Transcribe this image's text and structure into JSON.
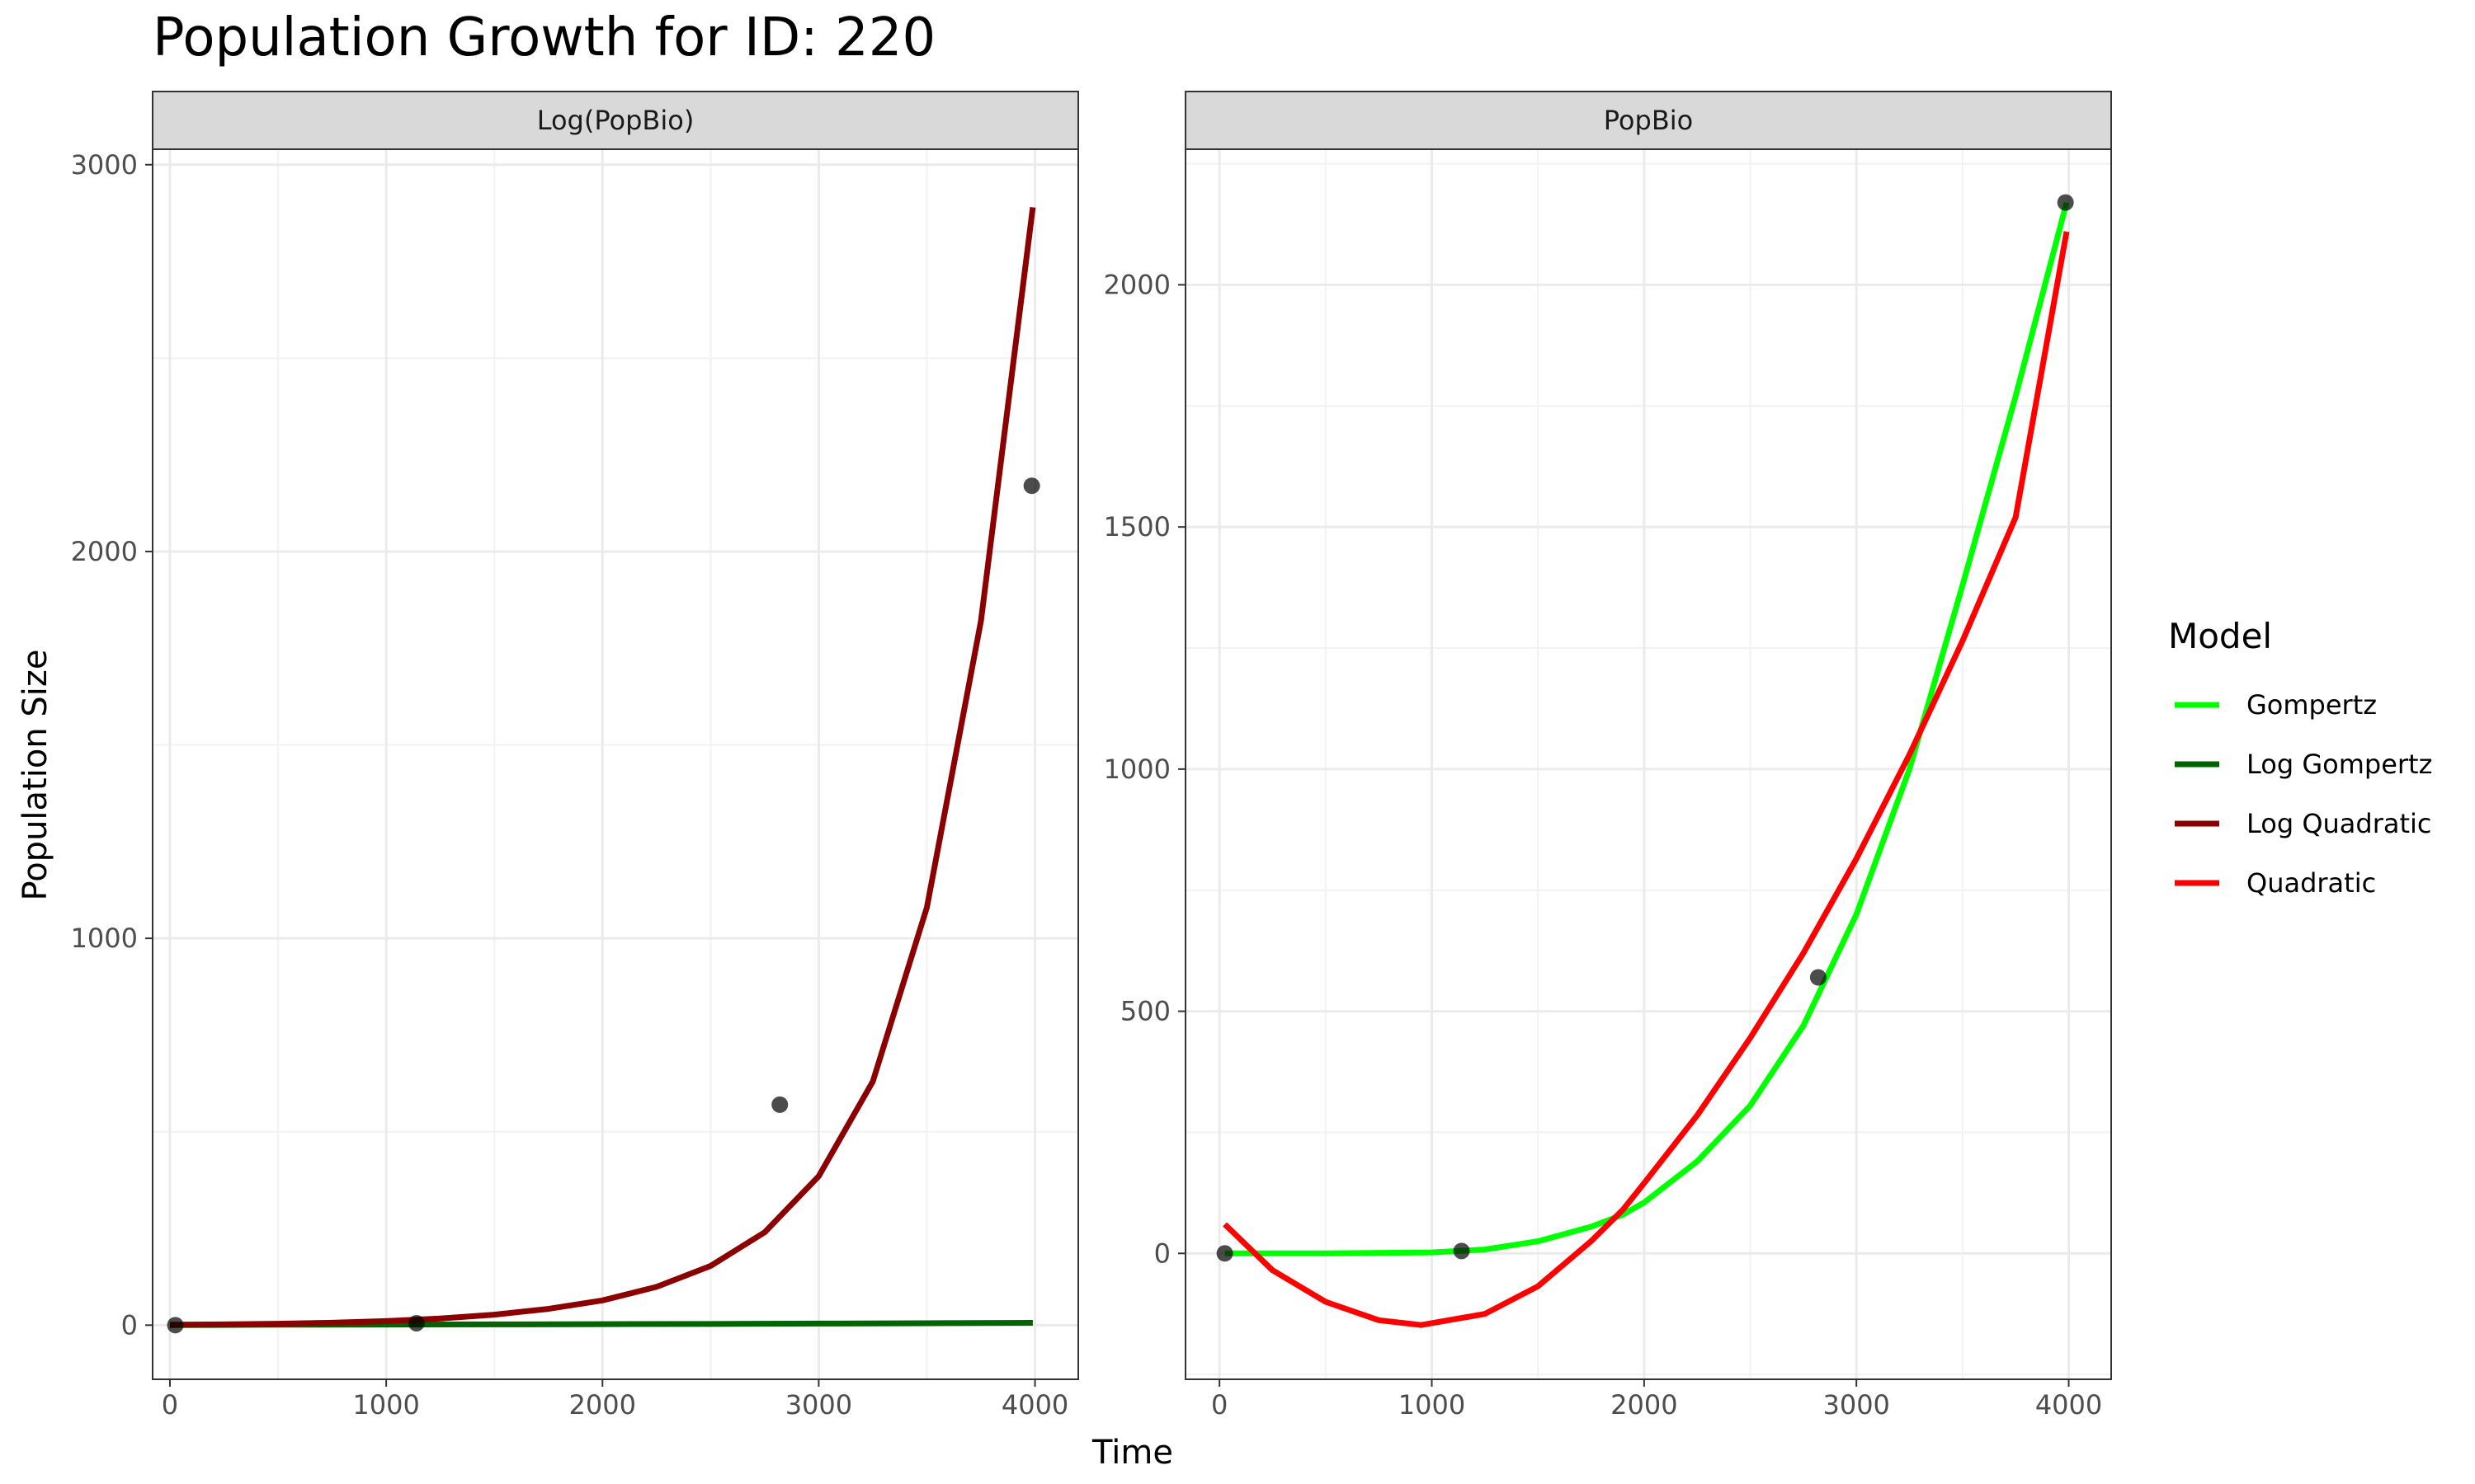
{
  "chart_data": {
    "type": "line",
    "title": "Population Growth for ID: 220",
    "xlabel": "Time",
    "ylabel": "Population Size",
    "grid": true,
    "legend": {
      "title": "Model",
      "placement": "right",
      "entries": [
        {
          "label": "Gompertz",
          "color": "#00ff00"
        },
        {
          "label": "Log Gompertz",
          "color": "#006400"
        },
        {
          "label": "Log Quadratic",
          "color": "#8b0000"
        },
        {
          "label": "Quadratic",
          "color": "#ff0000"
        }
      ]
    },
    "panels": [
      {
        "strip": "Log(PopBio)",
        "xlim": [
          -80,
          4200
        ],
        "ylim": [
          -140,
          3040
        ],
        "xticks": [
          0,
          1000,
          2000,
          3000,
          4000
        ],
        "xtick_labels": [
          "0",
          "1000",
          "2000",
          "3000",
          "4000"
        ],
        "yticks": [
          0,
          1000,
          2000,
          3000
        ],
        "ytick_labels": [
          "0",
          "1000",
          "2000",
          "3000"
        ],
        "points": [
          {
            "x": 25,
            "y": 0
          },
          {
            "x": 1140,
            "y": 5
          },
          {
            "x": 2820,
            "y": 570
          },
          {
            "x": 3985,
            "y": 2170
          }
        ],
        "series": [
          {
            "name": "Log Gompertz",
            "color": "#006400",
            "x": [
              0,
              500,
              1000,
              1500,
              2000,
              2500,
              3000,
              3500,
              3990
            ],
            "y": [
              0,
              1,
              1.5,
              2,
              2.5,
              3,
              4,
              5,
              6
            ]
          },
          {
            "name": "Log Quadratic",
            "color": "#8b0000",
            "x": [
              0,
              250,
              500,
              750,
              1000,
              1250,
              1500,
              1750,
              2000,
              2250,
              2500,
              2750,
              3000,
              3250,
              3500,
              3750,
              3990
            ],
            "y": [
              1,
              2,
              3.6,
              6.3,
              10.5,
              17,
              27,
              42,
              64,
              99,
              153,
              240,
              385,
              630,
              1080,
              1820,
              2890
            ]
          }
        ]
      },
      {
        "strip": "PopBio",
        "xlim": [
          -160,
          4200
        ],
        "ylim": [
          -260,
          2280
        ],
        "xticks": [
          0,
          1000,
          2000,
          3000,
          4000
        ],
        "xtick_labels": [
          "0",
          "1000",
          "2000",
          "3000",
          "4000"
        ],
        "yticks": [
          0,
          500,
          1000,
          1500,
          2000
        ],
        "ytick_labels": [
          "0",
          "500",
          "1000",
          "1500",
          "2000"
        ],
        "points": [
          {
            "x": 25,
            "y": 0
          },
          {
            "x": 1140,
            "y": 5
          },
          {
            "x": 2820,
            "y": 570
          },
          {
            "x": 3985,
            "y": 2170
          }
        ],
        "series": [
          {
            "name": "Gompertz",
            "color": "#00ff00",
            "x": [
              25,
              500,
              1000,
              1250,
              1500,
              1750,
              1900,
              2000,
              2250,
              2500,
              2750,
              3000,
              3250,
              3500,
              3750,
              3990
            ],
            "y": [
              0,
              0,
              2,
              8,
              25,
              55,
              80,
              105,
              190,
              305,
              470,
              700,
              1000,
              1380,
              1770,
              2170
            ]
          },
          {
            "name": "Quadratic",
            "color": "#ff0000",
            "x": [
              25,
              250,
              500,
              750,
              950,
              1250,
              1500,
              1750,
              1900,
              2000,
              2250,
              2500,
              2750,
              3000,
              3250,
              3500,
              3750,
              3990
            ],
            "y": [
              60,
              -35,
              -100,
              -138,
              -148,
              -125,
              -68,
              25,
              90,
              145,
              285,
              445,
              620,
              815,
              1030,
              1265,
              1520,
              2110
            ]
          }
        ]
      }
    ]
  }
}
